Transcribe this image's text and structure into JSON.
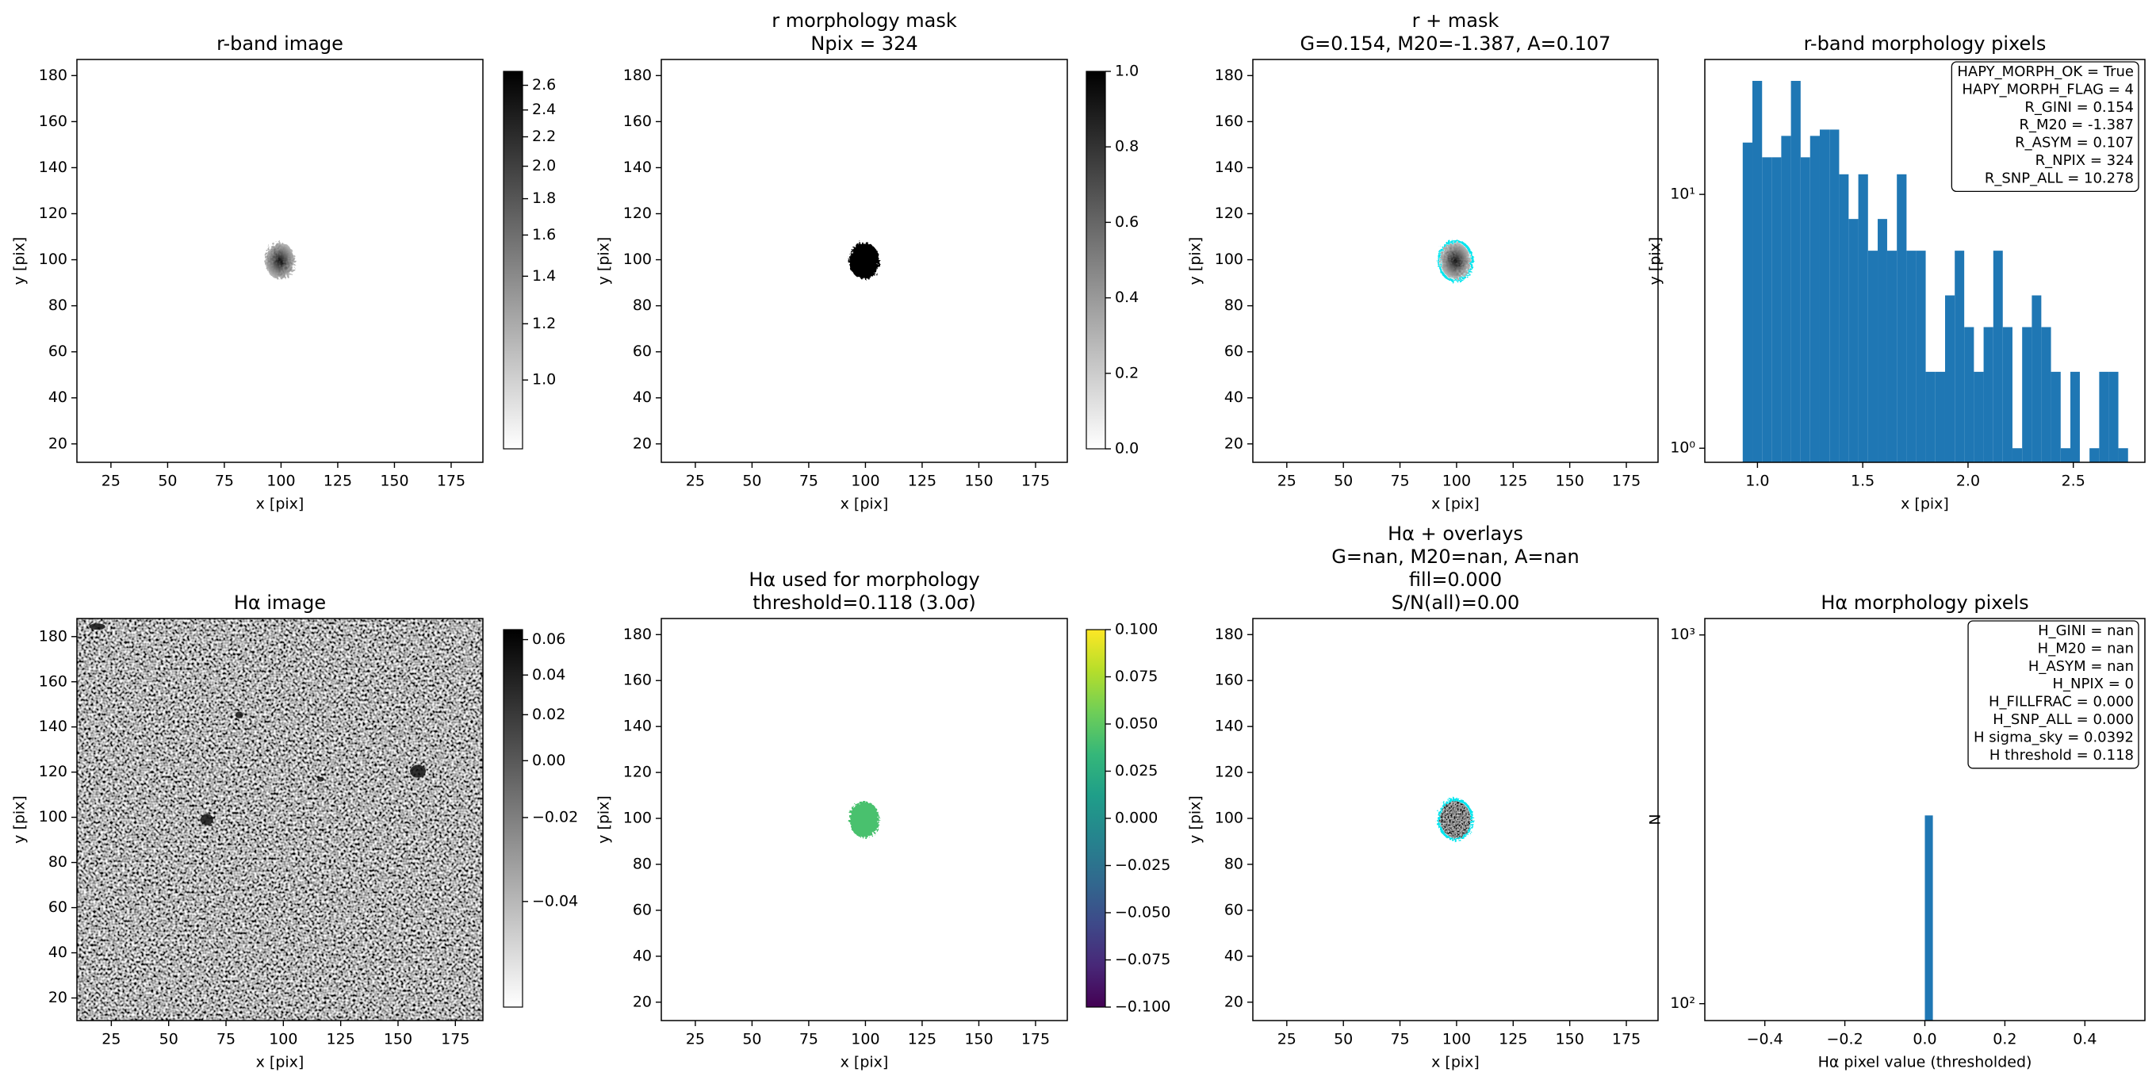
{
  "chart_data": [
    {
      "type": "image",
      "title": [
        "r-band image"
      ],
      "xlabel": "x [pix]",
      "ylabel": "y [pix]",
      "xlim": [
        10,
        189
      ],
      "ylim": [
        12,
        187
      ],
      "xticks": [
        25,
        50,
        75,
        100,
        125,
        150,
        175
      ],
      "yticks": [
        20,
        40,
        60,
        80,
        100,
        120,
        140,
        160,
        180
      ],
      "colorbar": {
        "cmap": "gray_r",
        "scale": "log",
        "lim": [
          0.8,
          2.72
        ],
        "ticks": [
          {
            "value": 1,
            "label": "1.0"
          },
          1.2,
          1.4,
          1.6,
          1.8,
          {
            "value": 2,
            "label": "2.0"
          },
          2.2,
          2.4,
          2.6
        ]
      }
    },
    {
      "type": "image",
      "title": [
        "r morphology mask",
        "Npix = 324"
      ],
      "xlabel": "x [pix]",
      "ylabel": "y [pix]",
      "xlim": [
        10,
        189
      ],
      "ylim": [
        12,
        187
      ],
      "xticks": [
        25,
        50,
        75,
        100,
        125,
        150,
        175
      ],
      "yticks": [
        20,
        40,
        60,
        80,
        100,
        120,
        140,
        160,
        180
      ],
      "colorbar": {
        "cmap": "gray_r",
        "scale": "linear",
        "lim": [
          0,
          1
        ],
        "ticks": [
          {
            "value": 0,
            "label": "0.0"
          },
          0.2,
          0.4,
          0.6,
          0.8,
          {
            "value": 1,
            "label": "1.0"
          }
        ]
      }
    },
    {
      "type": "image",
      "title": [
        "r + mask",
        "G=0.154, M20=-1.387, A=0.107"
      ],
      "xlabel": "x [pix]",
      "ylabel": "y [pix]",
      "xlim": [
        10,
        189
      ],
      "ylim": [
        12,
        187
      ],
      "xticks": [
        25,
        50,
        75,
        100,
        125,
        150,
        175
      ],
      "yticks": [
        20,
        40,
        60,
        80,
        100,
        120,
        140,
        160,
        180
      ]
    },
    {
      "type": "histogram",
      "title": [
        "r-band morphology pixels"
      ],
      "xlabel": "x [pix]",
      "ylabel": "y [pix]",
      "color": "#1f77b4",
      "yscale": "log",
      "xlim": [
        0.75,
        2.84
      ],
      "ylim": [
        0.88,
        34
      ],
      "xticks": [
        {
          "value": 1,
          "label": "1.0"
        },
        1.5,
        {
          "value": 2,
          "label": "2.0"
        },
        2.5
      ],
      "yticks": [
        {
          "value": 1,
          "label": "10⁰"
        },
        {
          "value": 10,
          "label": "10¹"
        }
      ],
      "bins": [
        0.93,
        0.976,
        1.022,
        1.067,
        1.113,
        1.159,
        1.205,
        1.25,
        1.296,
        1.342,
        1.388,
        1.433,
        1.479,
        1.525,
        1.571,
        1.616,
        1.662,
        1.708,
        1.754,
        1.799,
        1.845,
        1.891,
        1.937,
        1.982,
        2.028,
        2.074,
        2.12,
        2.165,
        2.211,
        2.257,
        2.303,
        2.348,
        2.394,
        2.44,
        2.486,
        2.531,
        2.577,
        2.623,
        2.669,
        2.714,
        2.76
      ],
      "counts": [
        16,
        28,
        14,
        14,
        17,
        28,
        14,
        17,
        18,
        18,
        12,
        8,
        12,
        6,
        8,
        6,
        12,
        6,
        6,
        2,
        2,
        4,
        6,
        3,
        2,
        3,
        6,
        3,
        1,
        3,
        4,
        3,
        2,
        1,
        2,
        0,
        1,
        2,
        2,
        1
      ],
      "annotation": [
        "HAPY_MORPH_OK = True",
        "HAPY_MORPH_FLAG = 4",
        "R_GINI = 0.154",
        "R_M20 = -1.387",
        "R_ASYM = 0.107",
        "R_NPIX = 324",
        "R_SNP_ALL = 10.278"
      ]
    },
    {
      "type": "image",
      "title": [
        "Hα image"
      ],
      "xlabel": "x [pix]",
      "ylabel": "y [pix]",
      "xlim": [
        10,
        187
      ],
      "ylim": [
        10,
        188
      ],
      "xticks": [
        25,
        50,
        75,
        100,
        125,
        150,
        175
      ],
      "yticks": [
        20,
        40,
        60,
        80,
        100,
        120,
        140,
        160,
        180
      ],
      "colorbar": {
        "cmap": "gray_r",
        "scale": "sqrt",
        "lim": [
          -0.049,
          0.066
        ],
        "ticks": [
          {
            "value": -0.04,
            "label": "−0.04"
          },
          {
            "value": -0.02,
            "label": "−0.02"
          },
          {
            "value": 0,
            "label": "0.00"
          },
          0.02,
          0.04,
          0.06
        ]
      }
    },
    {
      "type": "image",
      "title": [
        "Hα used for morphology",
        "threshold=0.118 (3.0σ)"
      ],
      "xlabel": "x [pix]",
      "ylabel": "y [pix]",
      "xlim": [
        10,
        189
      ],
      "ylim": [
        12,
        187
      ],
      "xticks": [
        25,
        50,
        75,
        100,
        125,
        150,
        175
      ],
      "yticks": [
        20,
        40,
        60,
        80,
        100,
        120,
        140,
        160,
        180
      ],
      "colorbar": {
        "cmap": "viridis",
        "scale": "linear",
        "lim": [
          -0.1,
          0.1
        ],
        "ticks": [
          {
            "value": -0.1,
            "label": "−0.100"
          },
          {
            "value": -0.075,
            "label": "−0.075"
          },
          {
            "value": -0.05,
            "label": "−0.050"
          },
          {
            "value": -0.025,
            "label": "−0.025"
          },
          {
            "value": 0,
            "label": "0.000"
          },
          0.025,
          {
            "value": 0.05,
            "label": "0.050"
          },
          0.075,
          {
            "value": 0.1,
            "label": "0.100"
          }
        ]
      }
    },
    {
      "type": "image",
      "title": [
        "Hα + overlays",
        "G=nan, M20=nan, A=nan",
        "fill=0.000",
        "S/N(all)=0.00"
      ],
      "xlabel": "x [pix]",
      "ylabel": "y [pix]",
      "xlim": [
        10,
        189
      ],
      "ylim": [
        12,
        187
      ],
      "xticks": [
        25,
        50,
        75,
        100,
        125,
        150,
        175
      ],
      "yticks": [
        20,
        40,
        60,
        80,
        100,
        120,
        140,
        160,
        180
      ]
    },
    {
      "type": "histogram",
      "title": [
        "Hα morphology pixels"
      ],
      "xlabel": "Hα pixel value (thresholded)",
      "ylabel": "N",
      "color": "#1f77b4",
      "yscale": "log",
      "xlim": [
        -0.55,
        0.55
      ],
      "ylim": [
        90,
        1108
      ],
      "xticks": [
        {
          "value": -0.4,
          "label": "−0.4"
        },
        {
          "value": -0.2,
          "label": "−0.2"
        },
        {
          "value": 0,
          "label": "0.0"
        },
        0.2,
        0.4
      ],
      "yticks": [
        {
          "value": 100,
          "label": "10²"
        },
        {
          "value": 1000,
          "label": "10³"
        }
      ],
      "bins": [
        -0.5,
        -0.48,
        -0.46,
        -0.44,
        -0.42,
        -0.4,
        -0.38,
        -0.36,
        -0.34,
        -0.32,
        -0.3,
        -0.28,
        -0.26,
        -0.24,
        -0.22,
        -0.2,
        -0.18,
        -0.16,
        -0.14,
        -0.12,
        -0.1,
        -0.08,
        -0.06,
        -0.04,
        -0.02,
        0,
        0.02,
        0.04,
        0.06,
        0.08,
        0.1,
        0.12,
        0.14,
        0.16,
        0.18,
        0.2,
        0.22,
        0.24,
        0.26,
        0.28,
        0.3,
        0.32,
        0.34,
        0.36,
        0.38,
        0.4,
        0.42,
        0.44,
        0.46,
        0.48,
        0.5
      ],
      "counts": [
        0,
        0,
        0,
        0,
        0,
        0,
        0,
        0,
        0,
        0,
        0,
        0,
        0,
        0,
        0,
        0,
        0,
        0,
        0,
        0,
        0,
        0,
        0,
        0,
        0,
        324,
        0,
        0,
        0,
        0,
        0,
        0,
        0,
        0,
        0,
        0,
        0,
        0,
        0,
        0,
        0,
        0,
        0,
        0,
        0,
        0,
        0,
        0,
        0,
        0
      ],
      "annotation": [
        "H_GINI = nan",
        "H_M20 = nan",
        "H_ASYM = nan",
        "H_NPIX = 0",
        "H_FILLFRAC = 0.000",
        "H_SNP_ALL = 0.000",
        "H sigma_sky = 0.0392",
        "H threshold = 0.118"
      ]
    }
  ]
}
